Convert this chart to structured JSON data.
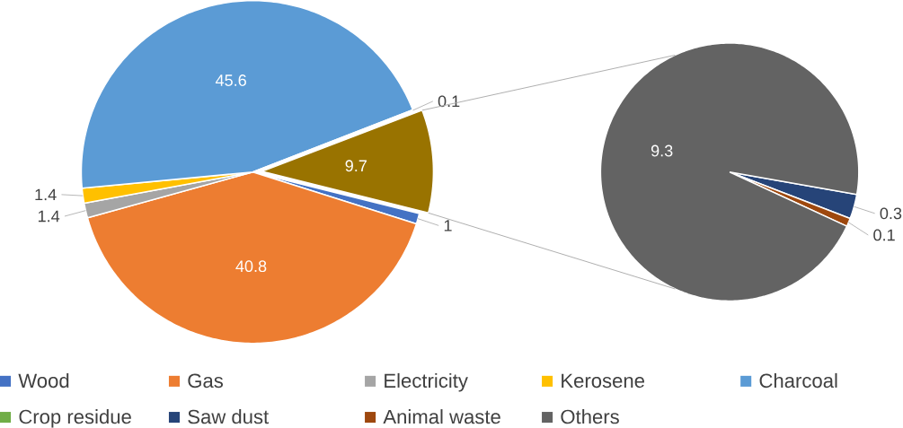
{
  "chart_data": [
    {
      "type": "pie",
      "categories": [
        "Wood",
        "Gas",
        "Electricity",
        "Kerosene",
        "Charcoal",
        "Crop residue",
        null
      ],
      "values": [
        1,
        40.8,
        1.4,
        1.4,
        45.6,
        0.1,
        9.7
      ],
      "colors": [
        "#4472c4",
        "#ed7d31",
        "#a5a5a5",
        "#ffc000",
        "#5b9bd5",
        "#70ad47",
        "#997300"
      ],
      "data_labels": true,
      "legend": "bottom"
    },
    {
      "type": "pie",
      "categories": [
        "Saw dust",
        "Animal waste",
        "Others"
      ],
      "values": [
        0.3,
        0.1,
        9.3
      ],
      "colors": [
        "#264478",
        "#9e480e",
        "#636363"
      ],
      "data_labels": true,
      "legend": "bottom"
    }
  ]
}
